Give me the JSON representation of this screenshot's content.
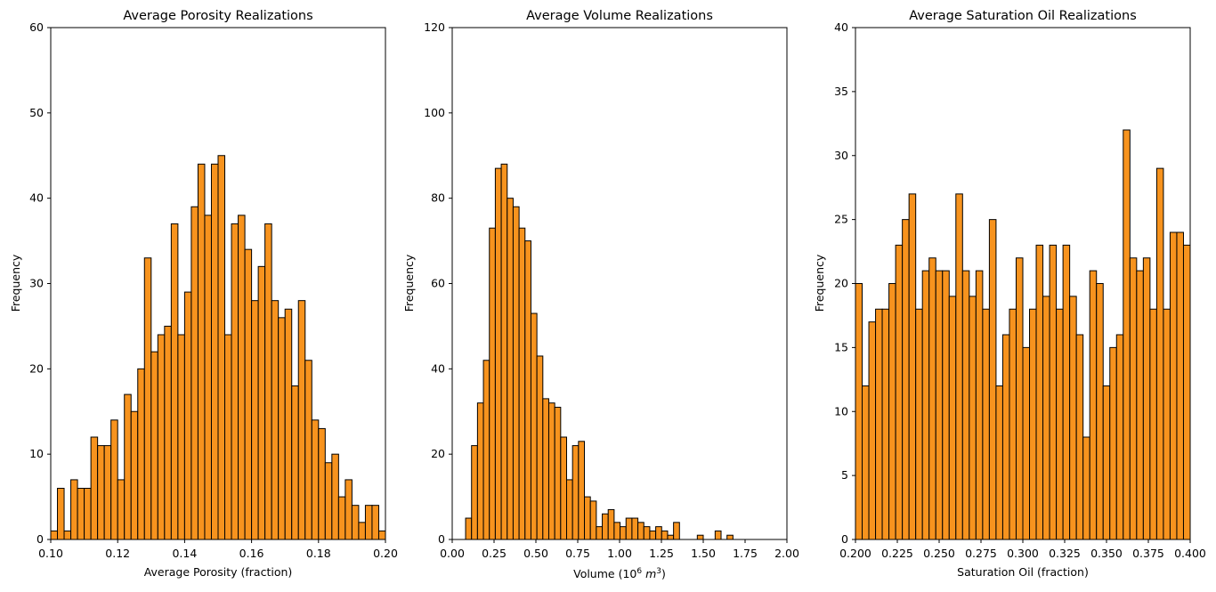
{
  "chart_data": [
    {
      "type": "bar",
      "title": "Average Porosity Realizations",
      "xlabel": "Average Porosity (fraction)",
      "ylabel": "Frequency",
      "xlim": [
        0.1,
        0.2
      ],
      "ylim": [
        0,
        60
      ],
      "xticks": [
        "0.10",
        "0.12",
        "0.14",
        "0.16",
        "0.18",
        "0.20"
      ],
      "yticks": [
        "0",
        "10",
        "20",
        "30",
        "40",
        "50",
        "60"
      ],
      "bin_start": 0.1,
      "bin_width": 0.002,
      "values": [
        1,
        6,
        1,
        7,
        6,
        6,
        12,
        11,
        11,
        14,
        7,
        17,
        15,
        20,
        33,
        22,
        24,
        25,
        37,
        24,
        29,
        39,
        44,
        38,
        44,
        45,
        24,
        37,
        38,
        34,
        28,
        32,
        37,
        28,
        26,
        27,
        18,
        28,
        21,
        14,
        13,
        9,
        10,
        5,
        7,
        4,
        2,
        4,
        4,
        1
      ],
      "color": "#f7931e"
    },
    {
      "type": "bar",
      "title": "Average Volume Realizations",
      "xlabel_main": "Volume (10",
      "xlabel_sup1": "6",
      "xlabel_mid": " m",
      "xlabel_sup2": "3",
      "xlabel_end": ")",
      "ylabel": "Frequency",
      "xlim": [
        0.0,
        2.0
      ],
      "ylim": [
        0,
        120
      ],
      "xticks": [
        "0.00",
        "0.25",
        "0.50",
        "0.75",
        "1.00",
        "1.25",
        "1.50",
        "1.75",
        "2.00"
      ],
      "yticks": [
        "0",
        "20",
        "40",
        "60",
        "80",
        "100",
        "120"
      ],
      "bin_start": 0.08,
      "bin_width": 0.0355,
      "values": [
        5,
        22,
        32,
        42,
        73,
        87,
        88,
        80,
        78,
        73,
        70,
        53,
        43,
        33,
        32,
        31,
        24,
        14,
        22,
        23,
        10,
        9,
        3,
        6,
        7,
        4,
        3,
        5,
        5,
        4,
        3,
        2,
        3,
        2,
        1,
        4,
        0,
        0,
        0,
        1,
        0,
        0,
        2,
        0,
        1
      ],
      "color": "#f7931e"
    },
    {
      "type": "bar",
      "title": "Average Saturation Oil Realizations",
      "xlabel": "Saturation Oil (fraction)",
      "ylabel": "Frequency",
      "xlim": [
        0.2,
        0.4
      ],
      "ylim": [
        0,
        40
      ],
      "xticks": [
        "0.200",
        "0.225",
        "0.250",
        "0.275",
        "0.300",
        "0.325",
        "0.350",
        "0.375",
        "0.400"
      ],
      "yticks": [
        "0",
        "5",
        "10",
        "15",
        "20",
        "25",
        "30",
        "35",
        "40"
      ],
      "bin_start": 0.2,
      "bin_width": 0.004,
      "values": [
        20,
        12,
        17,
        18,
        18,
        20,
        23,
        25,
        27,
        18,
        21,
        22,
        21,
        21,
        19,
        27,
        21,
        19,
        21,
        18,
        25,
        12,
        16,
        18,
        22,
        15,
        18,
        23,
        19,
        23,
        18,
        23,
        19,
        16,
        8,
        21,
        20,
        12,
        15,
        16,
        32,
        22,
        21,
        22,
        18,
        29,
        18,
        24,
        24,
        23
      ],
      "color": "#f7931e"
    }
  ]
}
